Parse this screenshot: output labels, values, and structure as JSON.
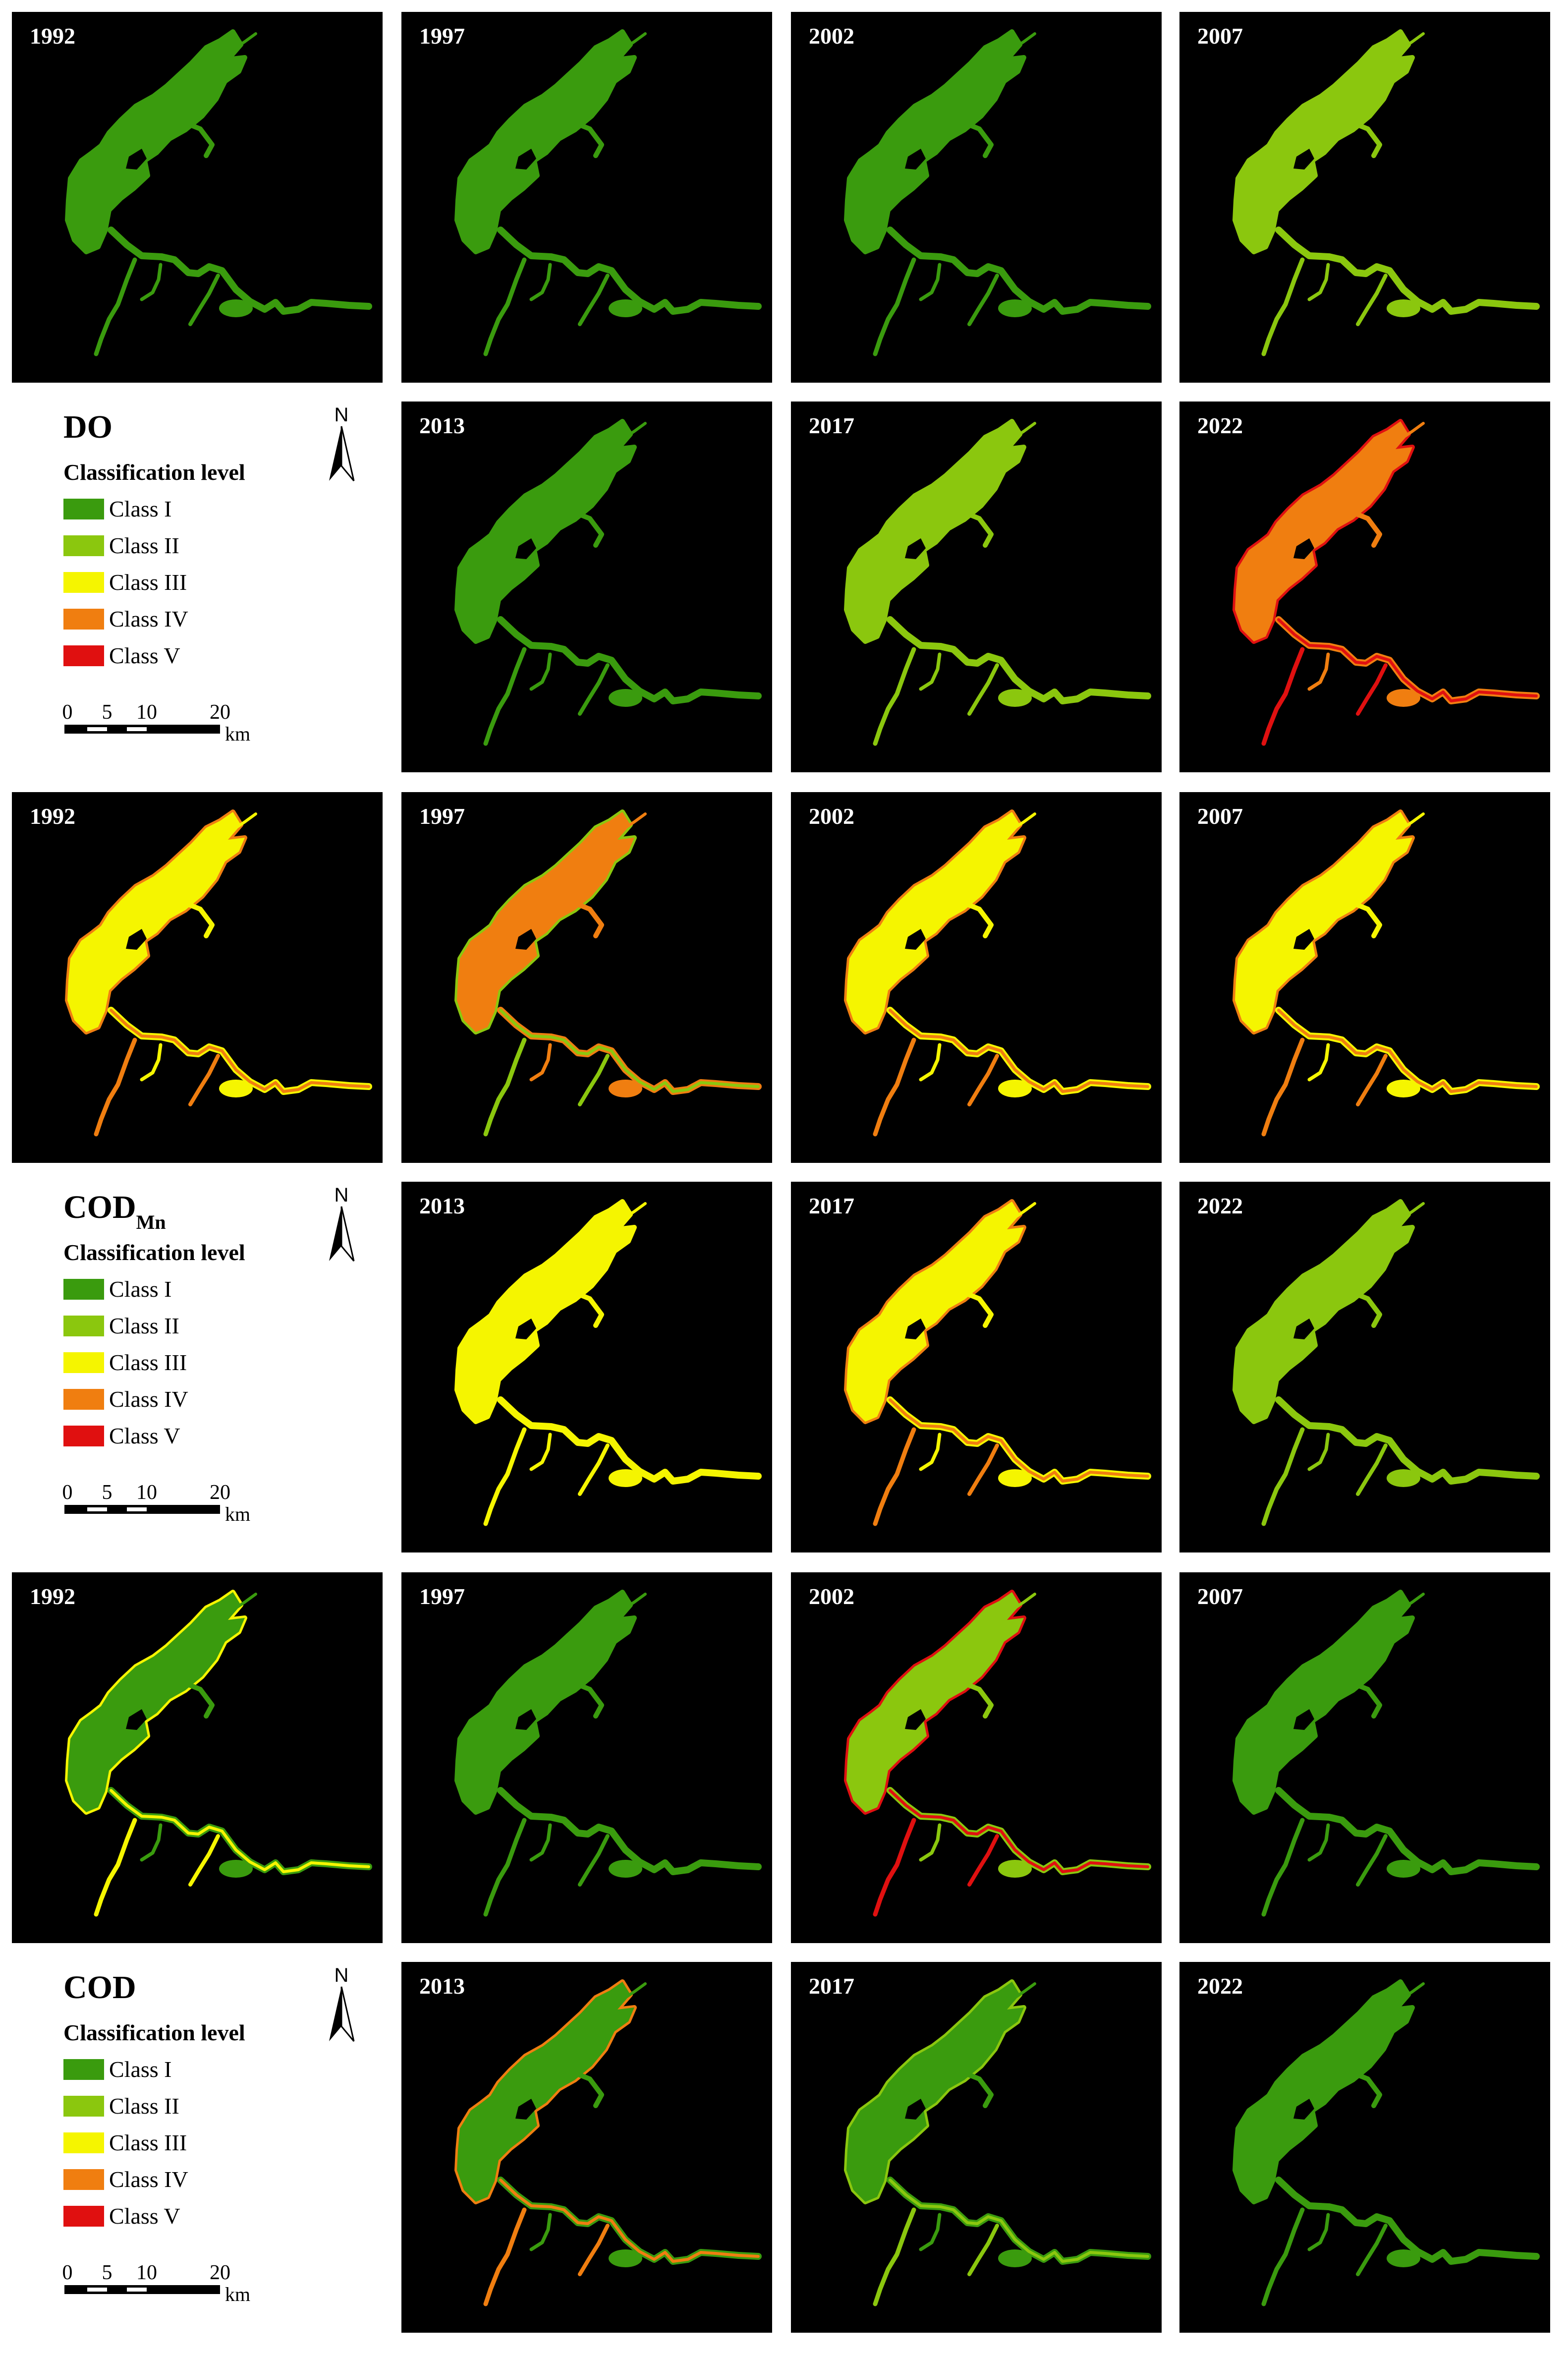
{
  "panel_years": [
    "1992",
    "1997",
    "2002",
    "2007",
    "2013",
    "2017",
    "2022"
  ],
  "classes": [
    {
      "label": "Class I",
      "color": "#3a9b0e"
    },
    {
      "label": "Class II",
      "color": "#8bc70e"
    },
    {
      "label": "Class III",
      "color": "#f5f500"
    },
    {
      "label": "Class IV",
      "color": "#f07e10"
    },
    {
      "label": "Class V",
      "color": "#e01010"
    }
  ],
  "legend_subtitle": "Classification level",
  "north_label": "N",
  "scale": {
    "ticks": [
      "0",
      "5",
      "10",
      "20"
    ],
    "unit": "km"
  },
  "indicators": [
    {
      "name": "DO",
      "sub": "",
      "panels": [
        {
          "year": "1992",
          "main": "#3a9b0e",
          "edge": "#3a9b0e"
        },
        {
          "year": "1997",
          "main": "#3a9b0e",
          "edge": "#3a9b0e"
        },
        {
          "year": "2002",
          "main": "#3a9b0e",
          "edge": "#3a9b0e"
        },
        {
          "year": "2007",
          "main": "#8bc70e",
          "edge": "#8bc70e"
        },
        {
          "year": "2013",
          "main": "#3a9b0e",
          "edge": "#3a9b0e"
        },
        {
          "year": "2017",
          "main": "#8bc70e",
          "edge": "#8bc70e"
        },
        {
          "year": "2022",
          "main": "#f07e10",
          "edge": "#e01010"
        }
      ]
    },
    {
      "name": "COD",
      "sub": "Mn",
      "panels": [
        {
          "year": "1992",
          "main": "#f5f500",
          "edge": "#f07e10"
        },
        {
          "year": "1997",
          "main": "#f07e10",
          "edge": "#8bc70e"
        },
        {
          "year": "2002",
          "main": "#f5f500",
          "edge": "#f07e10"
        },
        {
          "year": "2007",
          "main": "#f5f500",
          "edge": "#f07e10"
        },
        {
          "year": "2013",
          "main": "#f5f500",
          "edge": "#f5f500"
        },
        {
          "year": "2017",
          "main": "#f5f500",
          "edge": "#f07e10"
        },
        {
          "year": "2022",
          "main": "#8bc70e",
          "edge": "#8bc70e"
        }
      ]
    },
    {
      "name": "COD",
      "sub": "",
      "panels": [
        {
          "year": "1992",
          "main": "#3a9b0e",
          "edge": "#f5f500"
        },
        {
          "year": "1997",
          "main": "#3a9b0e",
          "edge": "#3a9b0e"
        },
        {
          "year": "2002",
          "main": "#8bc70e",
          "edge": "#e01010"
        },
        {
          "year": "2007",
          "main": "#3a9b0e",
          "edge": "#3a9b0e"
        },
        {
          "year": "2013",
          "main": "#3a9b0e",
          "edge": "#f07e10"
        },
        {
          "year": "2017",
          "main": "#3a9b0e",
          "edge": "#8bc70e"
        },
        {
          "year": "2022",
          "main": "#3a9b0e",
          "edge": "#3a9b0e"
        }
      ]
    }
  ]
}
